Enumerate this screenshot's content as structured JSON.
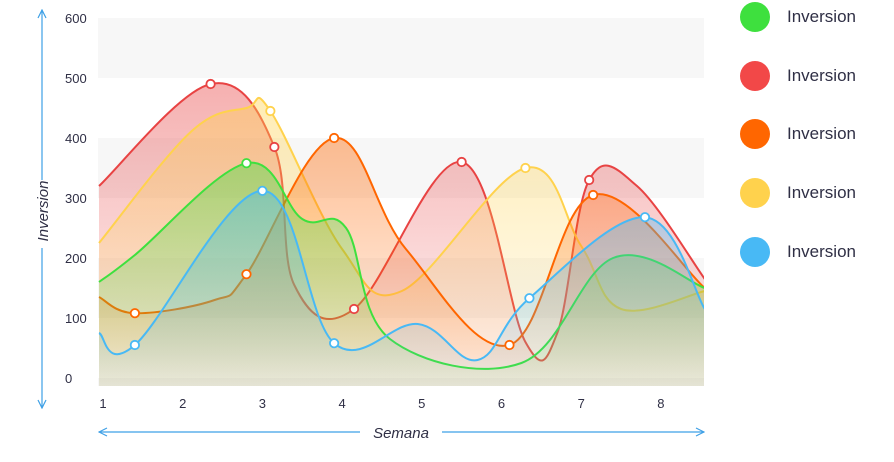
{
  "chart_data": {
    "type": "area",
    "xlabel": "Semana",
    "ylabel": "Inversion",
    "ylim": [
      0,
      600
    ],
    "xlim": [
      0.95,
      8.55
    ],
    "x_ticks": [
      "1",
      "2",
      "3",
      "4",
      "5",
      "6",
      "7",
      "8"
    ],
    "y_ticks": [
      "0",
      "100",
      "200",
      "300",
      "400",
      "500",
      "600"
    ],
    "grid": "alternating horizontal bands",
    "legend_position": "right",
    "series": [
      {
        "name": "Inversion",
        "color": "#e84343",
        "points": [
          [
            0.95,
            320
          ],
          [
            2.35,
            490
          ],
          [
            3.15,
            385
          ],
          [
            3.4,
            155
          ],
          [
            4.15,
            115
          ],
          [
            5.5,
            360
          ],
          [
            6.3,
            60
          ],
          [
            6.7,
            75
          ],
          [
            7.1,
            330
          ],
          [
            7.7,
            320
          ],
          [
            8.55,
            165
          ]
        ],
        "markers": [
          [
            2.35,
            490
          ],
          [
            3.15,
            385
          ],
          [
            4.15,
            115
          ],
          [
            5.5,
            360
          ],
          [
            7.1,
            330
          ]
        ]
      },
      {
        "name": "Inversion",
        "color": "#ffd24d",
        "points": [
          [
            0.95,
            225
          ],
          [
            2.1,
            410
          ],
          [
            2.8,
            450
          ],
          [
            3.1,
            445
          ],
          [
            4.0,
            215
          ],
          [
            4.75,
            145
          ],
          [
            6.3,
            350
          ],
          [
            7.0,
            220
          ],
          [
            7.5,
            115
          ],
          [
            8.55,
            145
          ]
        ],
        "markers": [
          [
            3.1,
            445
          ],
          [
            6.3,
            350
          ]
        ]
      },
      {
        "name": "Inversion",
        "color": "#ff6600",
        "points": [
          [
            0.95,
            135
          ],
          [
            1.4,
            108
          ],
          [
            2.4,
            130
          ],
          [
            2.8,
            173
          ],
          [
            3.9,
            400
          ],
          [
            4.8,
            215
          ],
          [
            6.1,
            55
          ],
          [
            7.15,
            305
          ],
          [
            8.55,
            150
          ]
        ],
        "markers": [
          [
            1.4,
            108
          ],
          [
            2.8,
            173
          ],
          [
            3.9,
            400
          ],
          [
            6.1,
            55
          ],
          [
            7.15,
            305
          ]
        ]
      },
      {
        "name": "Inversion",
        "color": "#3ee03e",
        "points": [
          [
            0.95,
            160
          ],
          [
            1.4,
            205
          ],
          [
            2.8,
            358
          ],
          [
            3.5,
            265
          ],
          [
            4.05,
            250
          ],
          [
            4.6,
            65
          ],
          [
            6.25,
            25
          ],
          [
            7.4,
            200
          ],
          [
            8.55,
            150
          ]
        ],
        "markers": [
          [
            2.8,
            358
          ]
        ]
      },
      {
        "name": "Inversion",
        "color": "#48b9f5",
        "points": [
          [
            0.95,
            75
          ],
          [
            1.4,
            55
          ],
          [
            3.0,
            312
          ],
          [
            3.9,
            58
          ],
          [
            4.95,
            90
          ],
          [
            5.7,
            30
          ],
          [
            6.35,
            133
          ],
          [
            7.8,
            268
          ],
          [
            8.55,
            115
          ]
        ],
        "markers": [
          [
            1.4,
            55
          ],
          [
            3.0,
            312
          ],
          [
            3.9,
            58
          ],
          [
            6.35,
            133
          ],
          [
            7.8,
            268
          ]
        ]
      }
    ]
  },
  "legend": [
    {
      "label": "Inversion",
      "color": "#3ee03e"
    },
    {
      "label": "Inversion",
      "color": "#f24848"
    },
    {
      "label": "Inversion",
      "color": "#ff6600"
    },
    {
      "label": "Inversion",
      "color": "#ffd24d"
    },
    {
      "label": "Inversion",
      "color": "#48b9f5"
    }
  ],
  "axis_color": "#3ea0e6"
}
